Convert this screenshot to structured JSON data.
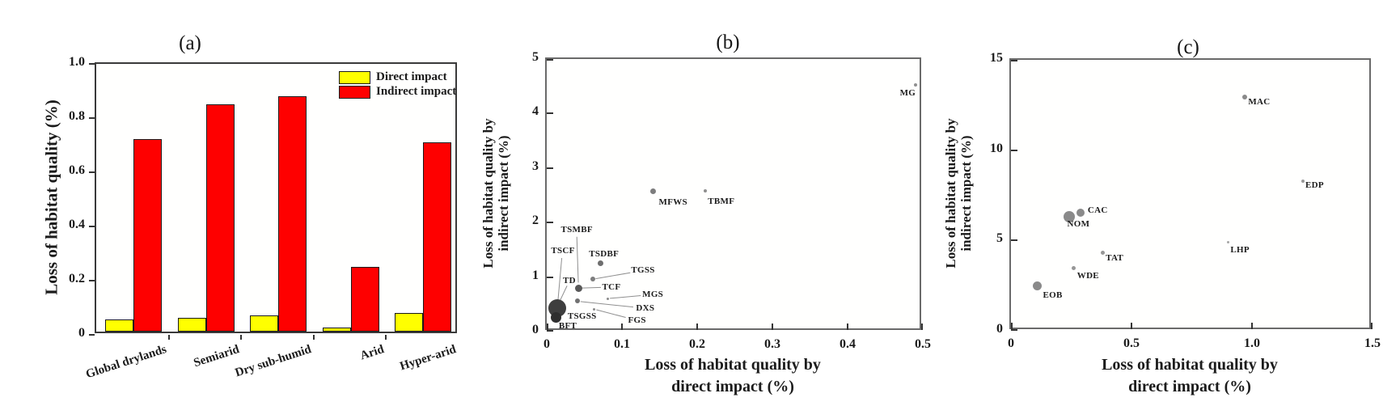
{
  "chart_data": [
    {
      "id": "a",
      "type": "bar",
      "title": "(a)",
      "ylabel": "Loss of habitat quality (%)",
      "categories": [
        "Global drylands",
        "Semiarid",
        "Dry sub-humid",
        "Arid",
        "Hyper-arid"
      ],
      "series": [
        {
          "name": "Direct impact",
          "color": "#ffff00",
          "values": [
            0.045,
            0.05,
            0.06,
            0.015,
            0.07
          ]
        },
        {
          "name": "Indirect impact",
          "color": "#fe0000",
          "values": [
            0.71,
            0.84,
            0.87,
            0.24,
            0.7
          ]
        }
      ],
      "ylim": [
        0,
        1.0
      ],
      "y_ticks": [
        "0",
        "0.2",
        "0.4",
        "0.6",
        "0.8",
        "1.0"
      ],
      "legend_position": "top-right",
      "grid": false
    },
    {
      "id": "b",
      "type": "scatter",
      "title": "(b)",
      "xlabel_line1": "Loss of habitat quality by",
      "xlabel_line2": "direct impact (%)",
      "ylabel_line1": "Loss of habitat quality by",
      "ylabel_line2": "indirect impact (%)",
      "xlim": [
        0,
        0.5
      ],
      "ylim": [
        0,
        5
      ],
      "x_ticks": [
        "0",
        "0.1",
        "0.2",
        "0.3",
        "0.4",
        "0.5"
      ],
      "y_ticks": [
        "0",
        "1",
        "2",
        "3",
        "4",
        "5"
      ],
      "grid": false,
      "points": [
        {
          "code": "MG",
          "x": 0.49,
          "y": 4.52,
          "d": 4,
          "color": "#8f8f8f",
          "lx": 0.48,
          "ly": 4.38
        },
        {
          "code": "MFWS",
          "x": 0.141,
          "y": 2.57,
          "d": 7,
          "color": "#7d7d7d",
          "lx": 0.168,
          "ly": 2.38
        },
        {
          "code": "TBMF",
          "x": 0.211,
          "y": 2.58,
          "d": 4,
          "color": "#8f8f8f",
          "lx": 0.232,
          "ly": 2.39
        },
        {
          "code": "TSMBF",
          "x": 0.042,
          "y": 0.88,
          "d": 0,
          "color": "#6e6e6e",
          "lx": 0.04,
          "ly": 1.87,
          "leader": [
            0.04,
            1.74,
            0.042,
            0.9
          ]
        },
        {
          "code": "TSCF",
          "x": 0.015,
          "y": 0.57,
          "d": 0,
          "color": "#6e6e6e",
          "lx": 0.0215,
          "ly": 1.48,
          "leader": [
            0.02,
            1.35,
            0.015,
            0.58
          ]
        },
        {
          "code": "TSDBF",
          "x": 0.072,
          "y": 1.25,
          "d": 7,
          "color": "#6e6e6e",
          "lx": 0.076,
          "ly": 1.43
        },
        {
          "code": "TGSS",
          "x": 0.061,
          "y": 0.96,
          "d": 6,
          "color": "#7d7d7d",
          "lx": 0.128,
          "ly": 1.13,
          "leader": [
            0.111,
            1.08,
            0.065,
            0.97
          ]
        },
        {
          "code": "TD",
          "x": 0.016,
          "y": 0.5,
          "d": 0,
          "color": "#6e6e6e",
          "lx": 0.03,
          "ly": 0.93,
          "leader": [
            0.027,
            0.84,
            0.016,
            0.52
          ]
        },
        {
          "code": "TCF",
          "x": 0.042,
          "y": 0.8,
          "d": 9,
          "color": "#585858",
          "lx": 0.086,
          "ly": 0.81,
          "leader": [
            0.072,
            0.81,
            0.047,
            0.8
          ]
        },
        {
          "code": "MGS",
          "x": 0.081,
          "y": 0.6,
          "d": 3,
          "color": "#8a8a8a",
          "lx": 0.141,
          "ly": 0.68,
          "leader": [
            0.125,
            0.66,
            0.084,
            0.61
          ]
        },
        {
          "code": "DXS",
          "x": 0.041,
          "y": 0.56,
          "d": 6,
          "color": "#717171",
          "lx": 0.131,
          "ly": 0.43,
          "leader": [
            0.115,
            0.45,
            0.045,
            0.55
          ]
        },
        {
          "code": "FGS",
          "x": 0.063,
          "y": 0.415,
          "d": 3,
          "color": "#8a8a8a",
          "lx": 0.12,
          "ly": 0.21,
          "leader": [
            0.105,
            0.26,
            0.066,
            0.4
          ]
        },
        {
          "code": "TSGSS",
          "x": 0.014,
          "y": 0.43,
          "d": 22,
          "color": "#3e3e3e",
          "lx": 0.047,
          "ly": 0.28
        },
        {
          "code": "BFT",
          "x": 0.012,
          "y": 0.267,
          "d": 13,
          "color": "#2e2e2e",
          "lx": 0.028,
          "ly": 0.1
        }
      ]
    },
    {
      "id": "c",
      "type": "scatter",
      "title": "(c)",
      "xlabel_line1": "Loss of habitat quality by",
      "xlabel_line2": "direct impact (%)",
      "ylabel_line1": "Loss of habitat quality by",
      "ylabel_line2": "indirect impact (%)",
      "xlim": [
        0,
        1.5
      ],
      "ylim": [
        0,
        15
      ],
      "x_ticks": [
        "0",
        "0.5",
        "1.0",
        "1.5"
      ],
      "y_ticks": [
        "0",
        "5",
        "10",
        "15"
      ],
      "grid": false,
      "points": [
        {
          "code": "MAC",
          "x": 0.97,
          "y": 12.95,
          "d": 6,
          "color": "#8a8a8a",
          "lx": 1.03,
          "ly": 12.67
        },
        {
          "code": "EDP",
          "x": 1.21,
          "y": 8.3,
          "d": 4,
          "color": "#999999",
          "lx": 1.26,
          "ly": 8.07
        },
        {
          "code": "CAC",
          "x": 0.29,
          "y": 6.55,
          "d": 10,
          "color": "#8a8a8a",
          "lx": 0.36,
          "ly": 6.66
        },
        {
          "code": "NOM",
          "x": 0.24,
          "y": 6.3,
          "d": 14,
          "color": "#8a8a8a",
          "lx": 0.28,
          "ly": 5.91
        },
        {
          "code": "LHP",
          "x": 0.9,
          "y": 4.9,
          "d": 3,
          "color": "#a5a5a5",
          "lx": 0.95,
          "ly": 4.49
        },
        {
          "code": "TAT",
          "x": 0.38,
          "y": 4.3,
          "d": 5,
          "color": "#979797",
          "lx": 0.43,
          "ly": 4.02
        },
        {
          "code": "WDE",
          "x": 0.26,
          "y": 3.45,
          "d": 5,
          "color": "#979797",
          "lx": 0.32,
          "ly": 3.03
        },
        {
          "code": "EOB",
          "x": 0.11,
          "y": 2.5,
          "d": 11,
          "color": "#8a8a8a",
          "lx": 0.173,
          "ly": 1.96
        }
      ]
    }
  ]
}
